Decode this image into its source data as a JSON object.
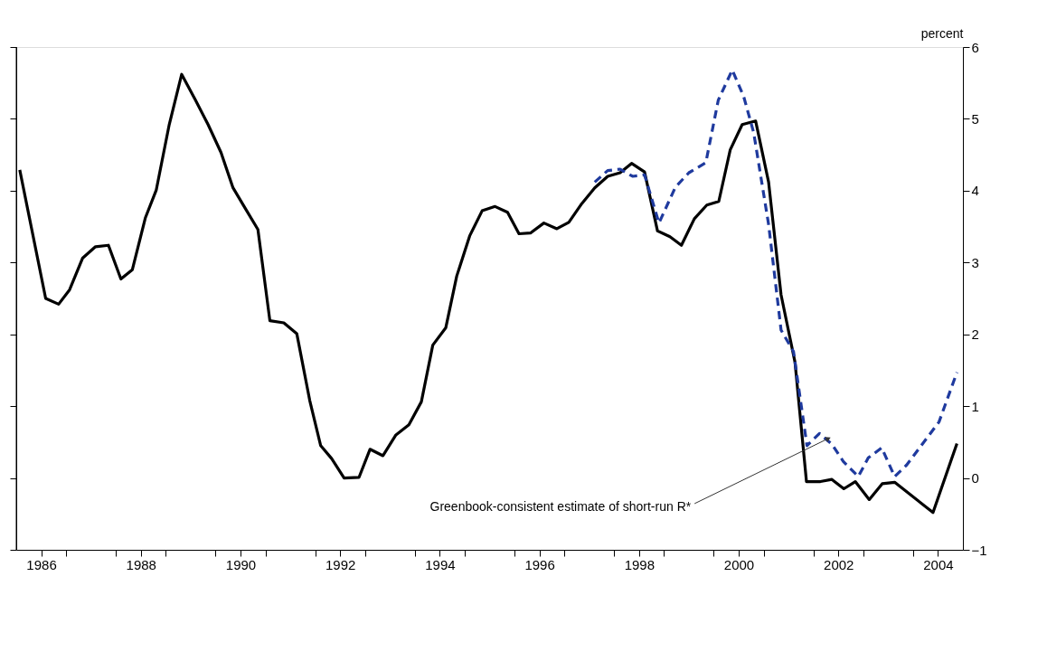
{
  "chart_data": {
    "type": "line",
    "ylabel": "percent",
    "xlim": [
      1986,
      2005
    ],
    "ylim": [
      -1,
      6
    ],
    "yticks": [
      -1,
      0,
      1,
      2,
      3,
      4,
      5,
      6
    ],
    "xticks": [
      {
        "value": 1986.5,
        "label": "1986"
      },
      {
        "value": 1988.5,
        "label": "1988"
      },
      {
        "value": 1990.5,
        "label": "1990"
      },
      {
        "value": 1992.5,
        "label": "1992"
      },
      {
        "value": 1994.5,
        "label": "1994"
      },
      {
        "value": 1996.5,
        "label": "1996"
      },
      {
        "value": 1998.5,
        "label": "1998"
      },
      {
        "value": 2000.5,
        "label": "2000"
      },
      {
        "value": 2002.5,
        "label": "2002"
      },
      {
        "value": 2004.5,
        "label": "2004"
      },
      {
        "value": 1987,
        "label": null
      },
      {
        "value": 1988,
        "label": null
      },
      {
        "value": 1989,
        "label": null
      },
      {
        "value": 1990,
        "label": null
      },
      {
        "value": 1991,
        "label": null
      },
      {
        "value": 1992,
        "label": null
      },
      {
        "value": 1993,
        "label": null
      },
      {
        "value": 1994,
        "label": null
      },
      {
        "value": 1995,
        "label": null
      },
      {
        "value": 1996,
        "label": null
      },
      {
        "value": 1997,
        "label": null
      },
      {
        "value": 1998,
        "label": null
      },
      {
        "value": 1999,
        "label": null
      },
      {
        "value": 2000,
        "label": null
      },
      {
        "value": 2001,
        "label": null
      },
      {
        "value": 2002,
        "label": null
      },
      {
        "value": 2003,
        "label": null
      },
      {
        "value": 2004,
        "label": null
      }
    ],
    "grid": false,
    "marker": "none",
    "series": [
      {
        "color": "#000000",
        "line_style": "solid",
        "x": [
          1986.07,
          1986.59,
          1986.85,
          1987.07,
          1987.33,
          1987.59,
          1987.85,
          1988.1,
          1988.33,
          1988.59,
          1988.81,
          1989.07,
          1989.32,
          1989.59,
          1989.85,
          1990.11,
          1990.35,
          1990.59,
          1990.85,
          1991.09,
          1991.37,
          1991.63,
          1991.89,
          1992.11,
          1992.33,
          1992.58,
          1992.88,
          1993.1,
          1993.36,
          1993.62,
          1993.88,
          1994.13,
          1994.36,
          1994.62,
          1994.84,
          1995.1,
          1995.35,
          1995.61,
          1995.86,
          1996.09,
          1996.32,
          1996.59,
          1996.85,
          1997.09,
          1997.35,
          1997.61,
          1997.87,
          1998.12,
          1998.35,
          1998.61,
          1998.87,
          1999.12,
          1999.35,
          1999.61,
          1999.86,
          2000.1,
          2000.33,
          2000.57,
          2000.84,
          2001.1,
          2001.35,
          2001.63,
          2001.86,
          2002.14,
          2002.37,
          2002.61,
          2002.84,
          2003.12,
          2003.38,
          2003.63,
          2004.4,
          2004.88
        ],
        "values": [
          4.29,
          2.5,
          2.42,
          2.62,
          3.06,
          3.22,
          3.24,
          2.77,
          2.9,
          3.62,
          4.01,
          4.92,
          5.62,
          5.27,
          4.92,
          4.53,
          4.04,
          3.76,
          3.46,
          2.19,
          2.16,
          2.01,
          1.08,
          0.45,
          0.27,
          0.0,
          0.01,
          0.4,
          0.31,
          0.6,
          0.74,
          1.06,
          1.85,
          2.09,
          2.81,
          3.37,
          3.72,
          3.78,
          3.7,
          3.4,
          3.41,
          3.55,
          3.47,
          3.56,
          3.82,
          4.04,
          4.2,
          4.25,
          4.38,
          4.26,
          3.44,
          3.36,
          3.24,
          3.61,
          3.8,
          3.85,
          4.57,
          4.92,
          4.97,
          4.12,
          2.55,
          1.61,
          -0.05,
          -0.05,
          -0.02,
          -0.15,
          -0.05,
          -0.3,
          -0.08,
          -0.06,
          -0.48,
          0.48
        ]
      },
      {
        "color": "#1f3a9e",
        "line_style": "dashed",
        "x": [
          1997.61,
          1997.87,
          1998.12,
          1998.37,
          1998.61,
          1998.9,
          1999.23,
          1999.5,
          1999.84,
          2000.09,
          2000.37,
          2000.6,
          2000.8,
          2001.1,
          2001.35,
          2001.6,
          2001.87,
          2002.12,
          2002.37,
          2002.6,
          2002.9,
          2003.1,
          2003.37,
          2003.63,
          2003.87,
          2004.52,
          2004.88
        ],
        "values": [
          4.12,
          4.28,
          4.3,
          4.2,
          4.22,
          3.55,
          4.05,
          4.25,
          4.39,
          5.26,
          5.68,
          5.31,
          4.81,
          3.53,
          2.06,
          1.76,
          0.45,
          0.62,
          0.47,
          0.23,
          0.02,
          0.28,
          0.42,
          0.02,
          0.18,
          0.78,
          1.47
        ]
      }
    ],
    "annotations": [
      {
        "text": "Greenbook-consistent estimate of short-run R*",
        "x": 2002.3,
        "y": 0.55
      }
    ]
  }
}
